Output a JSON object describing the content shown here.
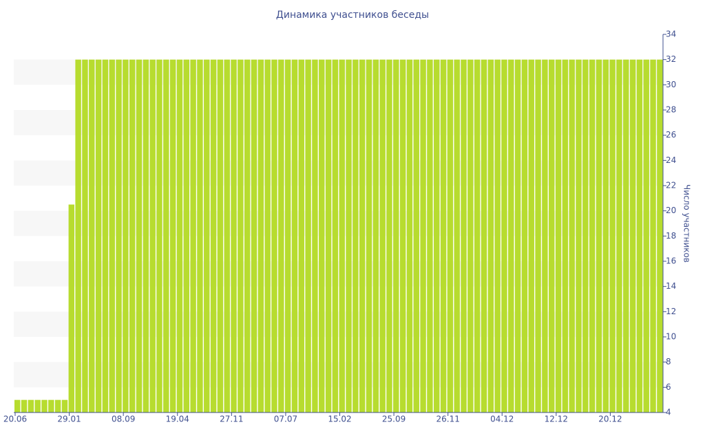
{
  "chart_data": {
    "type": "bar",
    "title": "Динамика участников беседы",
    "y_axis_label": "Число участников",
    "categories": [
      "20.06",
      null,
      null,
      null,
      null,
      null,
      null,
      null,
      "29.01",
      null,
      null,
      null,
      null,
      null,
      null,
      null,
      "08.09",
      null,
      null,
      null,
      null,
      null,
      null,
      null,
      "19.04",
      null,
      null,
      null,
      null,
      null,
      null,
      null,
      "27.11",
      null,
      null,
      null,
      null,
      null,
      null,
      null,
      "07.07",
      null,
      null,
      null,
      null,
      null,
      null,
      null,
      "15.02",
      null,
      null,
      null,
      null,
      null,
      null,
      null,
      "25.09",
      null,
      null,
      null,
      null,
      null,
      null,
      null,
      "26.11",
      null,
      null,
      null,
      null,
      null,
      null,
      null,
      "04.12",
      null,
      null,
      null,
      null,
      null,
      null,
      null,
      "12.12",
      null,
      null,
      null,
      null,
      null,
      null,
      null,
      "20.12",
      null,
      null,
      null,
      null,
      null,
      null,
      null
    ],
    "values": [
      5,
      5,
      5,
      5,
      5,
      5,
      5,
      5,
      20.5,
      32,
      32,
      32,
      32,
      32,
      32,
      32,
      32,
      32,
      32,
      32,
      32,
      32,
      32,
      32,
      32,
      32,
      32,
      32,
      32,
      32,
      32,
      32,
      32,
      32,
      32,
      32,
      32,
      32,
      32,
      32,
      32,
      32,
      32,
      32,
      32,
      32,
      32,
      32,
      32,
      32,
      32,
      32,
      32,
      32,
      32,
      32,
      32,
      32,
      32,
      32,
      32,
      32,
      32,
      32,
      32,
      32,
      32,
      32,
      32,
      32,
      32,
      32,
      32,
      32,
      32,
      32,
      32,
      32,
      32,
      32,
      32,
      32,
      32,
      32,
      32,
      32,
      32,
      32,
      32,
      32,
      32,
      32,
      32,
      32,
      32,
      32
    ],
    "color": "#b7dc2f",
    "ylim": [
      4,
      34
    ],
    "yticks": [
      4,
      6,
      8,
      10,
      12,
      14,
      16,
      18,
      20,
      22,
      24,
      26,
      28,
      30,
      32,
      34
    ],
    "y_axis_side": "right",
    "grid": "bands"
  }
}
